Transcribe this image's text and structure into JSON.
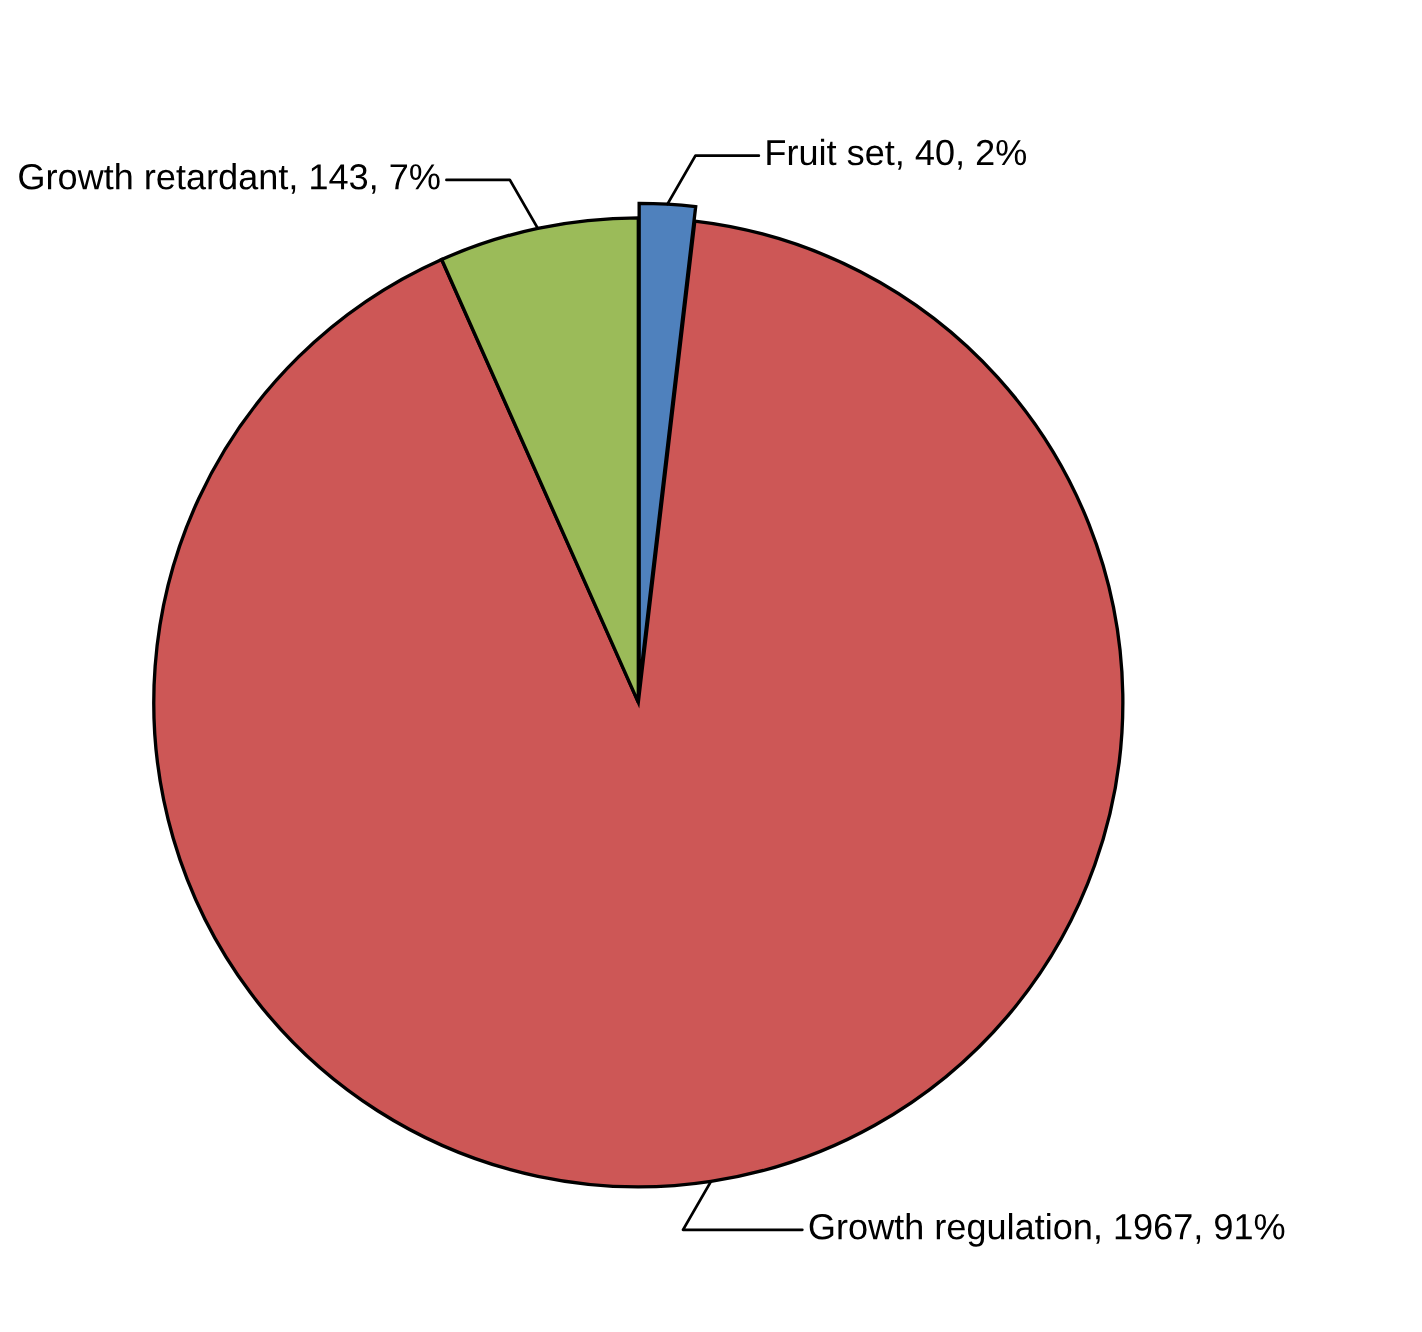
{
  "chart_data": {
    "type": "pie",
    "categories": [
      "Fruit set",
      "Growth regulation",
      "Growth retardant"
    ],
    "values": [
      40,
      1967,
      143
    ],
    "colors": [
      "#4f81bd",
      "#cd5756",
      "#9bbb59"
    ],
    "value_labels": [
      "40, 2%",
      "1967, 91%",
      "143, 7%"
    ]
  }
}
